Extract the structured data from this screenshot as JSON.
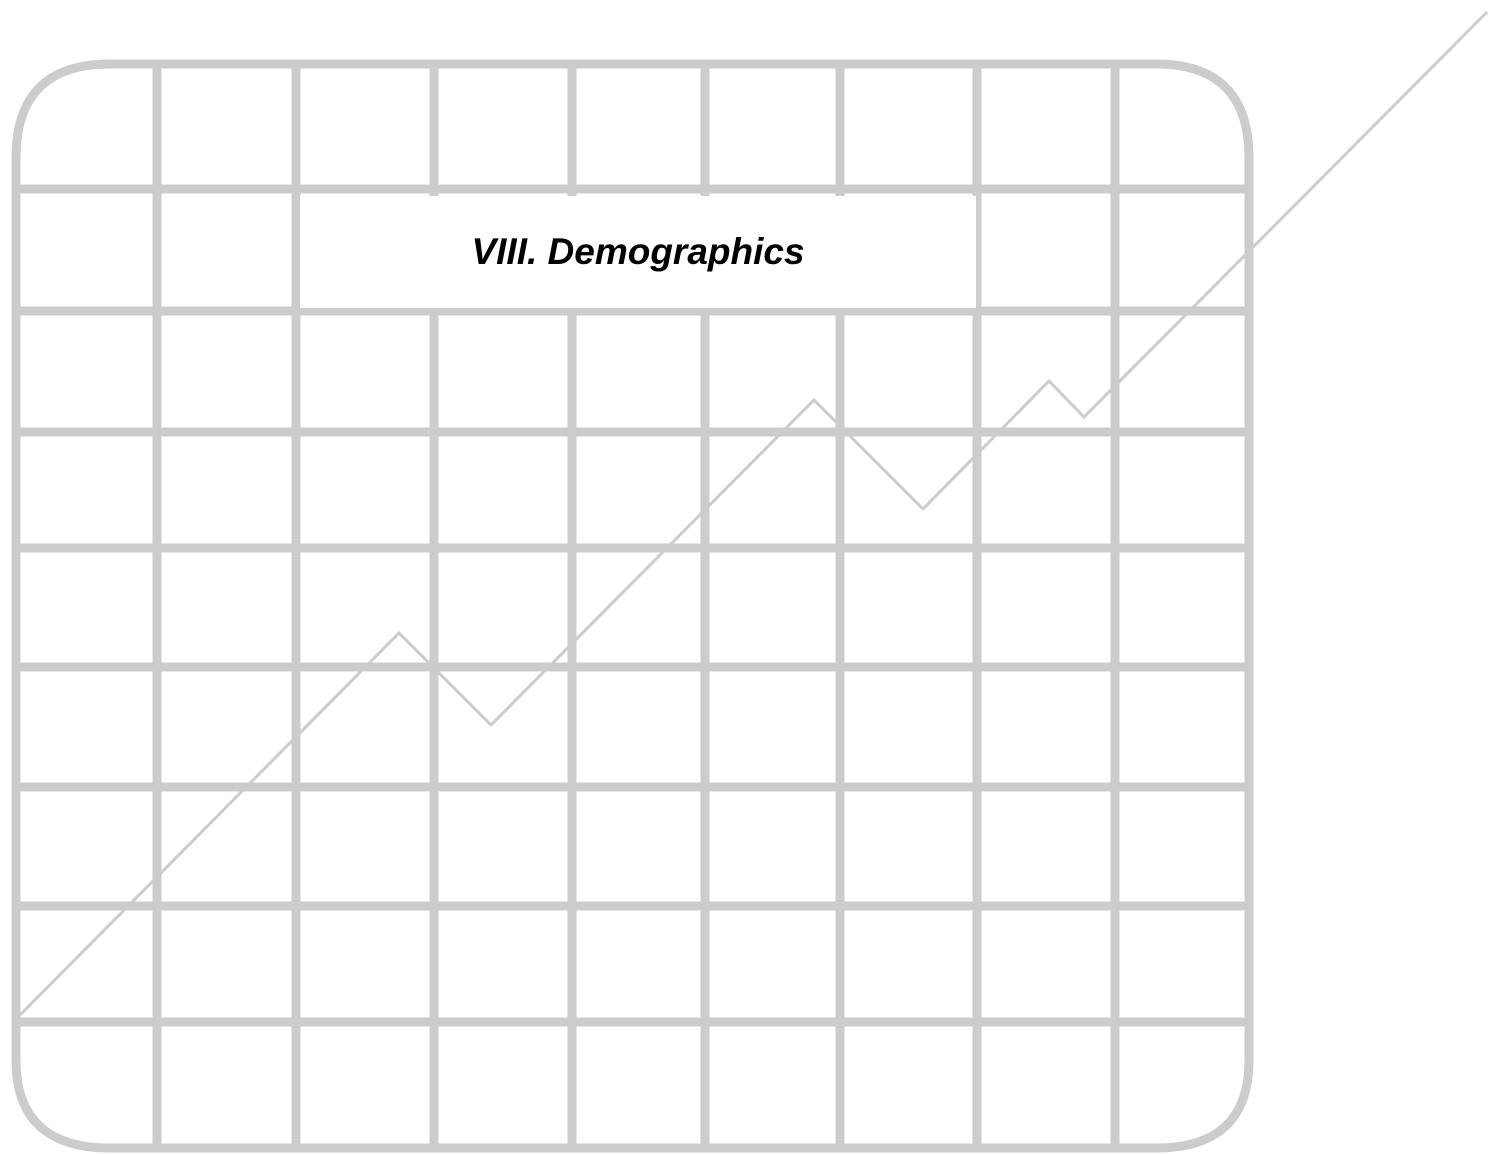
{
  "page": {
    "section_title": "VIII. Demographics"
  },
  "graphic": {
    "icon": "decorative-line-graph-icon",
    "colors": {
      "grid": "#cccccc",
      "background": "#ffffff",
      "title_text": "#000000"
    }
  }
}
